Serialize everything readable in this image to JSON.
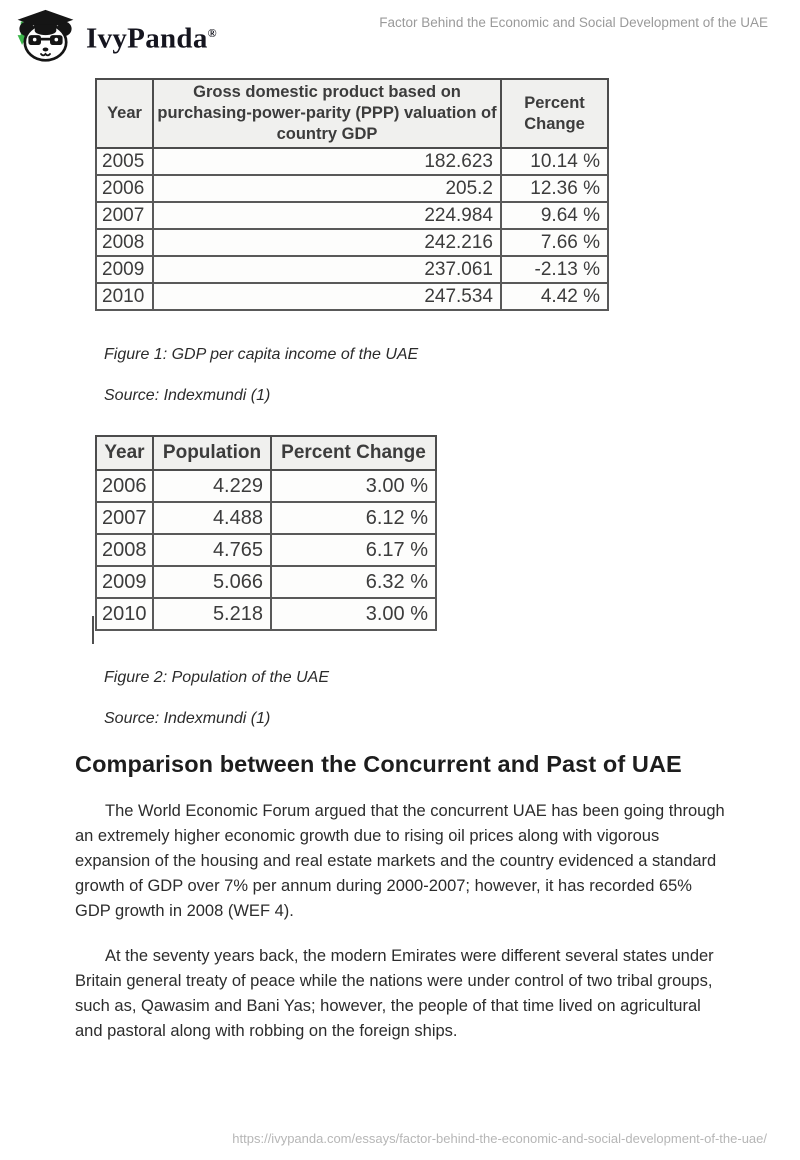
{
  "header": {
    "brand": "IvyPanda",
    "brand_mark": "®",
    "doc_title": "Factor Behind the Economic and Social Development of the UAE"
  },
  "figure1": {
    "table": {
      "columns": [
        "Year",
        "Gross domestic product based on purchasing-power-parity (PPP) valuation of country GDP",
        "Percent Change"
      ],
      "rows": [
        [
          "2005",
          "182.623",
          "10.14 %"
        ],
        [
          "2006",
          "205.2",
          "12.36 %"
        ],
        [
          "2007",
          "224.984",
          "9.64 %"
        ],
        [
          "2008",
          "242.216",
          "7.66 %"
        ],
        [
          "2009",
          "237.061",
          "-2.13 %"
        ],
        [
          "2010",
          "247.534",
          "4.42 %"
        ]
      ]
    },
    "caption": "Figure 1: GDP per capita income of the UAE",
    "source": "Source: Indexmundi (1)"
  },
  "figure2": {
    "table": {
      "columns": [
        "Year",
        "Population",
        "Percent Change"
      ],
      "rows": [
        [
          "2006",
          "4.229",
          "3.00 %"
        ],
        [
          "2007",
          "4.488",
          "6.12 %"
        ],
        [
          "2008",
          "4.765",
          "6.17 %"
        ],
        [
          "2009",
          "5.066",
          "6.32 %"
        ],
        [
          "2010",
          "5.218",
          "3.00 %"
        ]
      ]
    },
    "caption": "Figure 2: Population of the UAE",
    "source": "Source: Indexmundi (1)"
  },
  "section": {
    "heading": "Comparison between the Concurrent and Past of UAE",
    "paragraphs": [
      "The World Economic Forum argued that the concurrent UAE has been going through an extremely higher economic growth due to rising oil prices along with vigorous expansion of the housing and real estate markets and the country evidenced a standard growth of GDP over 7% per annum during 2000-2007; however, it has recorded 65% GDP growth in 2008 (WEF 4).",
      "At the seventy years back, the modern Emirates were different several states under Britain general treaty of peace while the nations were under control of two tribal groups, such as, Qawasim and Bani Yas; however, the people of that time lived on agricultural and pastoral along with robbing on the foreign ships."
    ]
  },
  "footer": {
    "url": "https://ivypanda.com/essays/factor-behind-the-economic-and-social-development-of-the-uae/"
  },
  "colors": {
    "brand_text": "#15151f",
    "tassel_green": "#3bb54a",
    "header_title_gray": "#9a9a9a",
    "footer_gray": "#b6b6b6",
    "table_text": "#3c3c3c"
  }
}
